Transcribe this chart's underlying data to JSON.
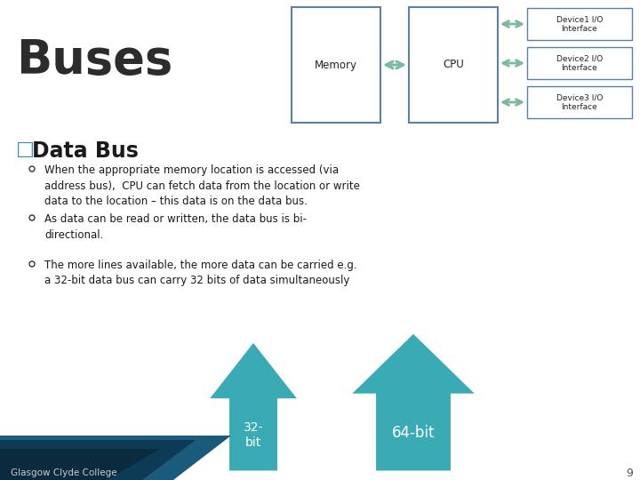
{
  "title": "Buses",
  "title_color": "#2c2c2c",
  "bg_color": "#FFFFFF",
  "section_title_square": "□",
  "section_title_text": "Data Bus",
  "section_title_color": "#3a8fa8",
  "bullets": [
    "When the appropriate memory location is accessed (via\naddress bus),  CPU can fetch data from the location or write\ndata to the location – this data is on the data bus.",
    "As data can be read or written, the data bus is bi-\ndirectional.",
    "The more lines available, the more data can be carried e.g.\na 32-bit data bus can carry 32 bits of data simultaneously"
  ],
  "diagram": {
    "memory_label": "Memory",
    "cpu_label": "CPU",
    "devices": [
      "Device1 I/O\nInterface",
      "Device2 I/O\nInterface",
      "Device3 I/O\nInterface"
    ],
    "box_edge": "#5a7fa8",
    "arrow_color": "#7ab8a0"
  },
  "arrow_labels": [
    "32-\nbit",
    "64-bit"
  ],
  "arrow_color": "#3aabb5",
  "footer_text": "Glasgow Clyde College",
  "page_number": "9",
  "footer_bg1": "#1a5a7a",
  "footer_bg2": "#0d3a55",
  "footer_bg3": "#0a2a40"
}
